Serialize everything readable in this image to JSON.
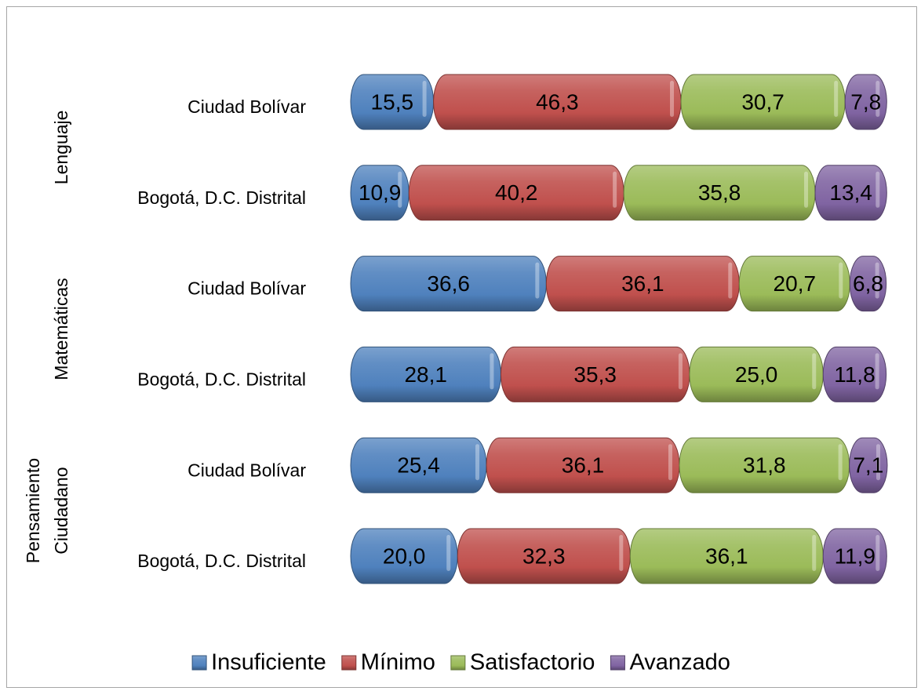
{
  "chart_data": {
    "type": "bar",
    "orientation": "horizontal",
    "stacked": true,
    "legend": "bottom",
    "groups": [
      [
        "Lenguaje"
      ],
      [
        "Matemáticas"
      ],
      [
        "Pensamiento",
        "Ciudadano"
      ]
    ],
    "categories": [
      "Ciudad Bolívar",
      "Bogotá, D.C. Distrital",
      "Ciudad Bolívar",
      "Bogotá, D.C. Distrital",
      "Ciudad Bolívar",
      "Bogotá, D.C. Distrital"
    ],
    "series": [
      {
        "name": "Insuficiente",
        "color": "#4f81bd",
        "values": [
          15.5,
          10.9,
          36.6,
          28.1,
          25.4,
          20.0
        ],
        "value_labels": [
          "15,5",
          "10,9",
          "36,6",
          "28,1",
          "25,4",
          "20,0"
        ]
      },
      {
        "name": "Mínimo",
        "color": "#c0504d",
        "values": [
          46.3,
          40.2,
          36.1,
          35.3,
          36.1,
          32.3
        ],
        "value_labels": [
          "46,3",
          "40,2",
          "36,1",
          "35,3",
          "36,1",
          "32,3"
        ]
      },
      {
        "name": "Satisfactorio",
        "color": "#9bbb59",
        "values": [
          30.7,
          35.8,
          20.7,
          25.0,
          31.8,
          36.1
        ],
        "value_labels": [
          "30,7",
          "35,8",
          "20,7",
          "25,0",
          "31,8",
          "36,1"
        ]
      },
      {
        "name": "Avanzado",
        "color": "#8064a2",
        "values": [
          7.8,
          13.4,
          6.8,
          11.8,
          7.1,
          11.9
        ],
        "value_labels": [
          "7,8",
          "13,4",
          "6,8",
          "11,8",
          "7,1",
          "11,9"
        ]
      }
    ]
  }
}
